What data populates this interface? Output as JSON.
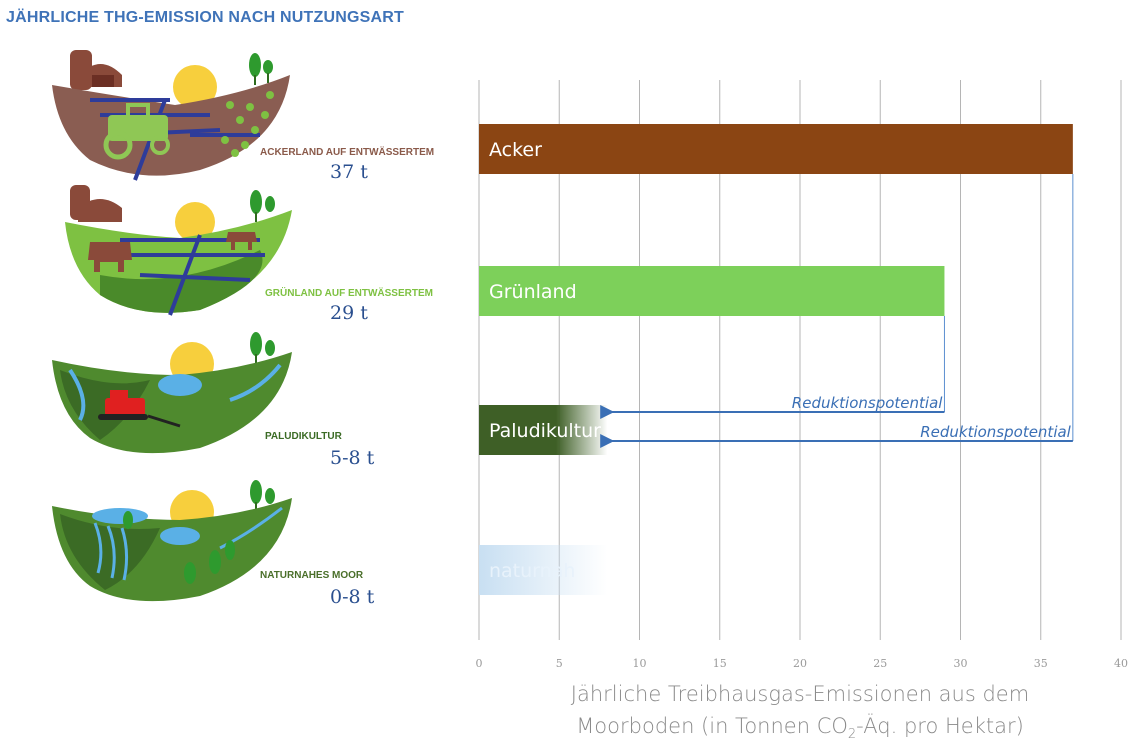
{
  "title": "JÄHRLICHE THG-EMISSION NACH NUTZUNGSART",
  "categories": [
    {
      "label": "ACKERLAND AUF ENTWÄSSERTEM",
      "value": "37 t",
      "color": "#8a5a4a"
    },
    {
      "label": "GRÜNLAND AUF ENTWÄSSERTEM",
      "value": "29  t",
      "color": "#7ec142"
    },
    {
      "label": "PALUDIKULTUR",
      "value": "5-8  t",
      "color": "#3b6b25"
    },
    {
      "label": "NATURNAHES MOOR",
      "value": "0-8 t",
      "color": "#4a6f2a"
    }
  ],
  "chart_data": {
    "type": "bar",
    "orientation": "horizontal",
    "categories": [
      "Acker",
      "Grünland",
      "Paludikultur",
      "naturnah"
    ],
    "values": [
      37,
      29,
      8,
      8
    ],
    "colors": [
      "#8b4513",
      "#7dd05a",
      "#3e5f26",
      "#c8dff2"
    ],
    "xlim": [
      0,
      40
    ],
    "xticks": [
      0,
      5,
      10,
      15,
      20,
      25,
      30,
      35,
      40
    ],
    "xlabel_line1": "Jährliche Treibhausgas-Emissionen aus dem",
    "xlabel_line2_pre": "Moorboden (in Tonnen CO",
    "xlabel_line2_sub": "2",
    "xlabel_line2_post": "-Äq. pro Hektar)",
    "grid": "vertical",
    "annotations": [
      {
        "text": "Reduktionspotential",
        "from": 29,
        "to": 8
      },
      {
        "text": "Reduktionspotential",
        "from": 37,
        "to": 8
      }
    ]
  }
}
